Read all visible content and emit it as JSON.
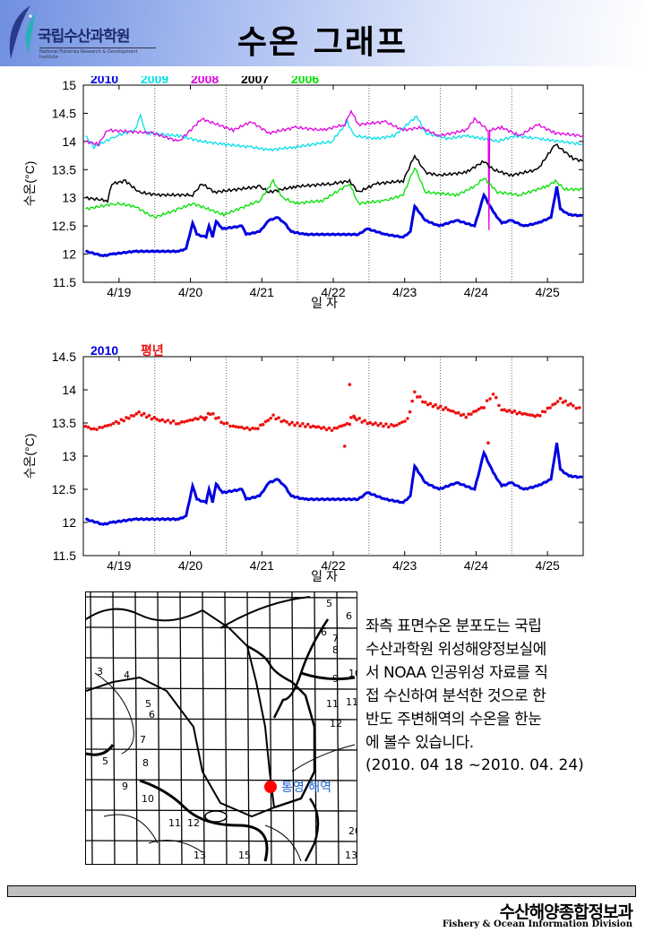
{
  "header": {
    "logo_text": "국립수산과학원",
    "logo_subtitle": "National Fisheries Research & Development Institute",
    "title": "수온 그래프"
  },
  "chart_data": [
    {
      "type": "line",
      "title": "",
      "xlabel": "일 자",
      "ylabel": "수온(°C)",
      "xlim": [
        18.5,
        25.5
      ],
      "ylim": [
        11.5,
        15
      ],
      "yticks": [
        11.5,
        12,
        12.5,
        13,
        13.5,
        14,
        14.5,
        15
      ],
      "xticks": [
        19,
        20,
        21,
        22,
        23,
        24,
        25
      ],
      "xtick_labels": [
        "4/19",
        "4/20",
        "4/21",
        "4/22",
        "4/23",
        "4/24",
        "4/25"
      ],
      "grid": "dotted vertical at noon",
      "legend": "top-left",
      "series": [
        {
          "name": "2010",
          "color": "#0000e0",
          "width": 3,
          "points": [
            [
              18.53,
              12.05
            ],
            [
              18.78,
              11.97
            ],
            [
              18.9,
              12.0
            ],
            [
              19.22,
              12.05
            ],
            [
              19.84,
              12.05
            ],
            [
              19.94,
              12.1
            ],
            [
              20.03,
              12.55
            ],
            [
              20.09,
              12.35
            ],
            [
              20.22,
              12.3
            ],
            [
              20.26,
              12.5
            ],
            [
              20.31,
              12.3
            ],
            [
              20.36,
              12.58
            ],
            [
              20.45,
              12.45
            ],
            [
              20.72,
              12.5
            ],
            [
              20.78,
              12.35
            ],
            [
              20.97,
              12.4
            ],
            [
              21.1,
              12.6
            ],
            [
              21.22,
              12.65
            ],
            [
              21.32,
              12.55
            ],
            [
              21.41,
              12.4
            ],
            [
              21.6,
              12.35
            ],
            [
              22.35,
              12.35
            ],
            [
              22.48,
              12.45
            ],
            [
              22.73,
              12.35
            ],
            [
              22.98,
              12.3
            ],
            [
              23.08,
              12.4
            ],
            [
              23.14,
              12.85
            ],
            [
              23.29,
              12.6
            ],
            [
              23.48,
              12.5
            ],
            [
              23.73,
              12.6
            ],
            [
              23.98,
              12.5
            ],
            [
              24.11,
              13.05
            ],
            [
              24.24,
              12.75
            ],
            [
              24.36,
              12.55
            ],
            [
              24.49,
              12.6
            ],
            [
              24.67,
              12.5
            ],
            [
              24.86,
              12.55
            ],
            [
              25.05,
              12.65
            ],
            [
              25.13,
              13.2
            ],
            [
              25.18,
              12.8
            ],
            [
              25.3,
              12.7
            ],
            [
              25.49,
              12.68
            ]
          ]
        },
        {
          "name": "2009",
          "color": "#00e0e8",
          "width": 1.3,
          "points": [
            [
              18.53,
              14.1
            ],
            [
              18.65,
              13.9
            ],
            [
              18.96,
              14.1
            ],
            [
              19.22,
              14.2
            ],
            [
              19.3,
              14.45
            ],
            [
              19.38,
              14.15
            ],
            [
              19.84,
              14.1
            ],
            [
              20.16,
              14.0
            ],
            [
              20.47,
              13.95
            ],
            [
              20.85,
              13.9
            ],
            [
              21.1,
              13.85
            ],
            [
              21.47,
              13.9
            ],
            [
              21.98,
              14.0
            ],
            [
              22.2,
              14.35
            ],
            [
              22.29,
              14.1
            ],
            [
              22.6,
              14.05
            ],
            [
              22.85,
              14.1
            ],
            [
              23.17,
              14.45
            ],
            [
              23.29,
              14.15
            ],
            [
              23.61,
              14.05
            ],
            [
              23.86,
              14.1
            ],
            [
              24.11,
              14.05
            ],
            [
              24.3,
              14.0
            ],
            [
              24.55,
              14.1
            ],
            [
              24.86,
              14.05
            ],
            [
              25.18,
              14.0
            ],
            [
              25.49,
              13.95
            ]
          ]
        },
        {
          "name": "2008",
          "color": "#e000e0",
          "width": 1.3,
          "points": [
            [
              18.53,
              14.0
            ],
            [
              18.71,
              13.95
            ],
            [
              18.84,
              14.2
            ],
            [
              19.47,
              14.15
            ],
            [
              19.84,
              14.0
            ],
            [
              20.16,
              14.4
            ],
            [
              20.6,
              14.2
            ],
            [
              20.85,
              14.35
            ],
            [
              21.1,
              14.15
            ],
            [
              21.47,
              14.25
            ],
            [
              21.85,
              14.2
            ],
            [
              22.16,
              14.3
            ],
            [
              22.25,
              14.55
            ],
            [
              22.35,
              14.3
            ],
            [
              22.73,
              14.35
            ],
            [
              22.98,
              14.2
            ],
            [
              23.23,
              14.25
            ],
            [
              23.48,
              14.1
            ],
            [
              23.86,
              14.2
            ],
            [
              23.98,
              14.4
            ],
            [
              24.17,
              14.2
            ],
            [
              24.18,
              12.45
            ],
            [
              24.19,
              14.2
            ],
            [
              24.36,
              14.25
            ],
            [
              24.61,
              14.1
            ],
            [
              24.86,
              14.3
            ],
            [
              25.11,
              14.15
            ],
            [
              25.49,
              14.1
            ]
          ]
        },
        {
          "name": "2007",
          "color": "#000000",
          "width": 1.5,
          "points": [
            [
              18.53,
              13.0
            ],
            [
              18.84,
              12.95
            ],
            [
              18.9,
              13.25
            ],
            [
              19.09,
              13.3
            ],
            [
              19.28,
              13.1
            ],
            [
              19.53,
              13.05
            ],
            [
              20.03,
              13.05
            ],
            [
              20.16,
              13.25
            ],
            [
              20.34,
              13.1
            ],
            [
              20.97,
              13.2
            ],
            [
              21.1,
              13.1
            ],
            [
              21.47,
              13.2
            ],
            [
              21.98,
              13.25
            ],
            [
              22.23,
              13.3
            ],
            [
              22.35,
              13.1
            ],
            [
              22.6,
              13.25
            ],
            [
              22.98,
              13.3
            ],
            [
              23.14,
              13.75
            ],
            [
              23.29,
              13.45
            ],
            [
              23.48,
              13.4
            ],
            [
              23.86,
              13.45
            ],
            [
              24.11,
              13.65
            ],
            [
              24.24,
              13.5
            ],
            [
              24.49,
              13.4
            ],
            [
              24.86,
              13.5
            ],
            [
              25.11,
              13.95
            ],
            [
              25.36,
              13.7
            ],
            [
              25.49,
              13.65
            ]
          ]
        },
        {
          "name": "2006",
          "color": "#00e000",
          "width": 1.3,
          "points": [
            [
              18.53,
              12.8
            ],
            [
              18.96,
              12.9
            ],
            [
              19.22,
              12.85
            ],
            [
              19.49,
              12.65
            ],
            [
              19.84,
              12.8
            ],
            [
              20.03,
              12.9
            ],
            [
              20.47,
              12.7
            ],
            [
              20.97,
              12.95
            ],
            [
              21.16,
              13.3
            ],
            [
              21.29,
              13.0
            ],
            [
              21.47,
              12.9
            ],
            [
              21.85,
              12.95
            ],
            [
              22.23,
              13.25
            ],
            [
              22.35,
              12.9
            ],
            [
              22.73,
              12.95
            ],
            [
              22.98,
              13.05
            ],
            [
              23.14,
              13.55
            ],
            [
              23.29,
              13.1
            ],
            [
              23.73,
              13.05
            ],
            [
              23.98,
              13.2
            ],
            [
              24.11,
              13.35
            ],
            [
              24.3,
              13.1
            ],
            [
              24.61,
              13.05
            ],
            [
              24.99,
              13.2
            ],
            [
              25.11,
              13.3
            ],
            [
              25.24,
              13.15
            ],
            [
              25.49,
              13.15
            ]
          ]
        }
      ]
    },
    {
      "type": "line",
      "title": "",
      "xlabel": "일 자",
      "ylabel": "수온(°C)",
      "xlim": [
        18.5,
        25.5
      ],
      "ylim": [
        11.5,
        14.5
      ],
      "yticks": [
        11.5,
        12,
        12.5,
        13,
        13.5,
        14,
        14.5
      ],
      "xticks": [
        19,
        20,
        21,
        22,
        23,
        24,
        25
      ],
      "xtick_labels": [
        "4/19",
        "4/20",
        "4/21",
        "4/22",
        "4/23",
        "4/24",
        "4/25"
      ],
      "grid": "dotted vertical at noon",
      "legend": "top-left",
      "series": [
        {
          "name": "2010",
          "color": "#0000e0",
          "width": 3,
          "style": "line",
          "points": [
            [
              18.53,
              12.05
            ],
            [
              18.78,
              11.97
            ],
            [
              18.9,
              12.0
            ],
            [
              19.22,
              12.05
            ],
            [
              19.84,
              12.05
            ],
            [
              19.94,
              12.1
            ],
            [
              20.03,
              12.55
            ],
            [
              20.09,
              12.35
            ],
            [
              20.22,
              12.3
            ],
            [
              20.26,
              12.5
            ],
            [
              20.31,
              12.3
            ],
            [
              20.36,
              12.58
            ],
            [
              20.45,
              12.45
            ],
            [
              20.72,
              12.5
            ],
            [
              20.78,
              12.35
            ],
            [
              20.97,
              12.4
            ],
            [
              21.1,
              12.6
            ],
            [
              21.22,
              12.65
            ],
            [
              21.32,
              12.55
            ],
            [
              21.41,
              12.4
            ],
            [
              21.6,
              12.35
            ],
            [
              22.35,
              12.35
            ],
            [
              22.48,
              12.45
            ],
            [
              22.73,
              12.35
            ],
            [
              22.98,
              12.3
            ],
            [
              23.08,
              12.4
            ],
            [
              23.14,
              12.85
            ],
            [
              23.29,
              12.6
            ],
            [
              23.48,
              12.5
            ],
            [
              23.73,
              12.6
            ],
            [
              23.98,
              12.5
            ],
            [
              24.11,
              13.05
            ],
            [
              24.24,
              12.75
            ],
            [
              24.36,
              12.55
            ],
            [
              24.49,
              12.6
            ],
            [
              24.67,
              12.5
            ],
            [
              24.86,
              12.55
            ],
            [
              25.05,
              12.65
            ],
            [
              25.13,
              13.2
            ],
            [
              25.18,
              12.8
            ],
            [
              25.3,
              12.7
            ],
            [
              25.49,
              12.68
            ]
          ]
        },
        {
          "name": "평년",
          "color": "#ee1111",
          "width": 2,
          "style": "dots",
          "points": [
            [
              18.53,
              13.45
            ],
            [
              18.65,
              13.4
            ],
            [
              18.96,
              13.5
            ],
            [
              19.28,
              13.65
            ],
            [
              19.53,
              13.55
            ],
            [
              19.84,
              13.5
            ],
            [
              20.22,
              13.6
            ],
            [
              20.28,
              13.65
            ],
            [
              20.47,
              13.5
            ],
            [
              20.6,
              13.45
            ],
            [
              20.91,
              13.4
            ],
            [
              21.16,
              13.6
            ],
            [
              21.35,
              13.5
            ],
            [
              21.72,
              13.45
            ],
            [
              21.98,
              13.4
            ],
            [
              22.23,
              13.5
            ],
            [
              22.25,
              13.6
            ],
            [
              22.48,
              13.5
            ],
            [
              22.85,
              13.45
            ],
            [
              23.04,
              13.55
            ],
            [
              23.14,
              13.95
            ],
            [
              23.29,
              13.8
            ],
            [
              23.61,
              13.7
            ],
            [
              23.86,
              13.6
            ],
            [
              24.11,
              13.75
            ],
            [
              24.24,
              13.95
            ],
            [
              24.36,
              13.7
            ],
            [
              24.61,
              13.65
            ],
            [
              24.86,
              13.6
            ],
            [
              25.18,
              13.85
            ],
            [
              25.36,
              13.75
            ],
            [
              25.49,
              13.7
            ]
          ],
          "outliers": [
            [
              22.23,
              14.08
            ],
            [
              22.16,
              13.15
            ],
            [
              24.17,
              13.2
            ],
            [
              20.2,
              13.55
            ],
            [
              22.3,
              13.58
            ]
          ]
        }
      ]
    }
  ],
  "map": {
    "contour_labels": [
      "5",
      "6",
      "6",
      "7",
      "8",
      "9",
      "10",
      "11",
      "11",
      "12",
      "3",
      "4",
      "5",
      "6",
      "7",
      "5",
      "8",
      "9",
      "10",
      "11",
      "12",
      "13",
      "13",
      "15",
      "20"
    ],
    "location_label": "통영 해역",
    "marker_color": "#ff0000"
  },
  "description": {
    "lines": [
      "좌측 표면수온 분포도는 국립",
      "수산과학원 위성해양정보실에",
      "서 NOAA 인공위성 자료를 직",
      "접 수신하여 분석한 것으로 한",
      "반도 주변해역의 수온을 한눈",
      "에 볼수 있습니다."
    ],
    "date_range": "(2010. 04  18 ~2010. 04. 24)"
  },
  "footer": {
    "org_ko": "수산해양종합정보과",
    "org_en": "Fishery & Ocean Information Division"
  }
}
